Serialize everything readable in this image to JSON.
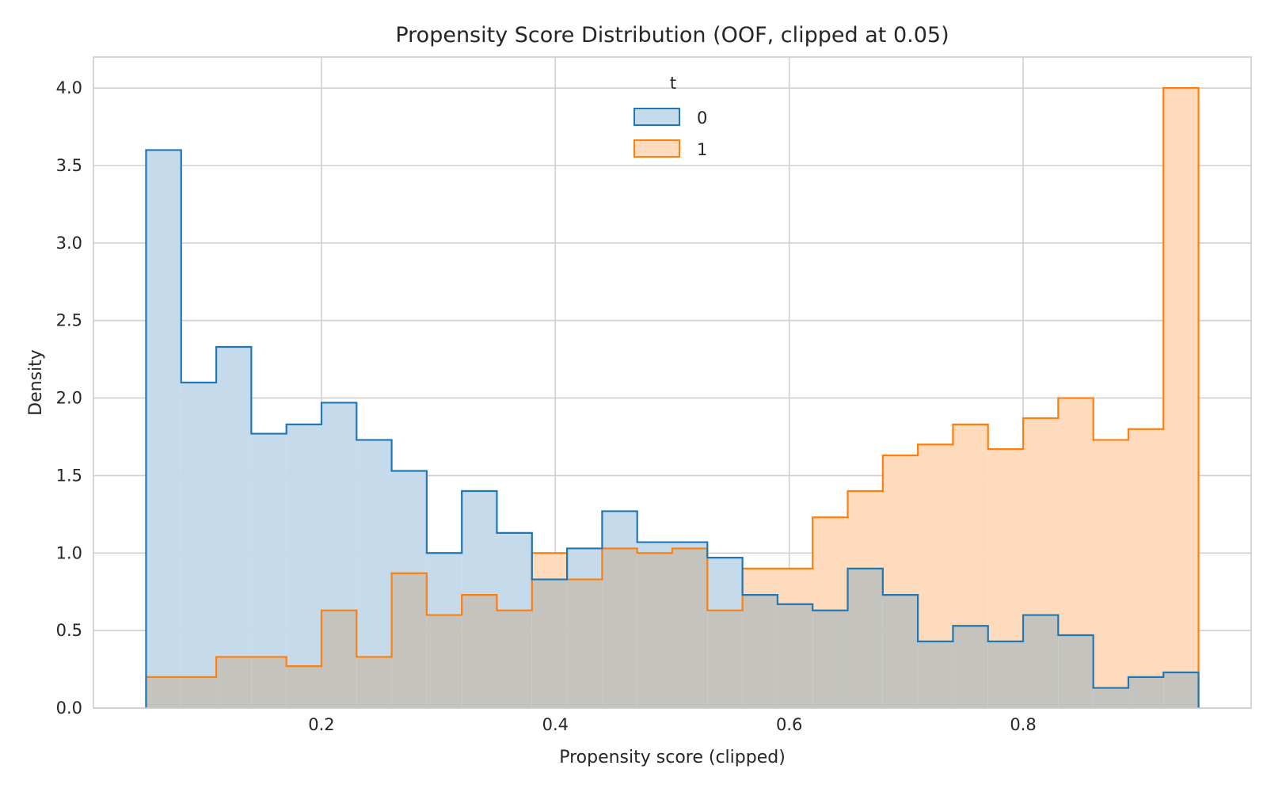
{
  "chart_data": {
    "type": "histogram",
    "title": "Propensity Score Distribution (OOF, clipped at 0.05)",
    "xlabel": "Propensity score (clipped)",
    "ylabel": "Density",
    "xlim": [
      0.005,
      0.995
    ],
    "ylim": [
      0.0,
      4.2
    ],
    "xticks": [
      0.2,
      0.4,
      0.6,
      0.8
    ],
    "xtick_labels": [
      "0.2",
      "0.4",
      "0.6",
      "0.8"
    ],
    "yticks": [
      0.0,
      0.5,
      1.0,
      1.5,
      2.0,
      2.5,
      3.0,
      3.5,
      4.0
    ],
    "ytick_labels": [
      "0.0",
      "0.5",
      "1.0",
      "1.5",
      "2.0",
      "2.5",
      "3.0",
      "3.5",
      "4.0"
    ],
    "grid": true,
    "legend": {
      "title": "t",
      "placement": "top-center"
    },
    "bin_edges": [
      0.05,
      0.08,
      0.11,
      0.14,
      0.17,
      0.2,
      0.23,
      0.26,
      0.29,
      0.32,
      0.35,
      0.38,
      0.41,
      0.44,
      0.47,
      0.5,
      0.53,
      0.56,
      0.59,
      0.62,
      0.65,
      0.68,
      0.71,
      0.74,
      0.77,
      0.8,
      0.83,
      0.86,
      0.89,
      0.92,
      0.95
    ],
    "series": [
      {
        "name": "0",
        "color": "#1f77b4",
        "fill": "#c5daeb",
        "values": [
          3.6,
          2.1,
          2.33,
          1.77,
          1.83,
          1.97,
          1.73,
          1.53,
          1.0,
          1.4,
          1.13,
          0.83,
          1.03,
          1.27,
          1.07,
          1.07,
          0.97,
          0.73,
          0.67,
          0.63,
          0.9,
          0.73,
          0.43,
          0.53,
          0.43,
          0.6,
          0.47,
          0.13,
          0.2,
          0.23
        ]
      },
      {
        "name": "1",
        "color": "#ff7f0e",
        "fill": "#fedbbd",
        "values": [
          0.2,
          0.2,
          0.33,
          0.33,
          0.27,
          0.63,
          0.33,
          0.87,
          0.6,
          0.73,
          0.63,
          1.0,
          0.83,
          1.03,
          1.0,
          1.03,
          0.63,
          0.9,
          0.9,
          1.23,
          1.4,
          1.63,
          1.7,
          1.83,
          1.67,
          1.87,
          2.0,
          1.73,
          1.8,
          4.0
        ]
      }
    ],
    "overlap_fill": "#c4c3bd"
  }
}
